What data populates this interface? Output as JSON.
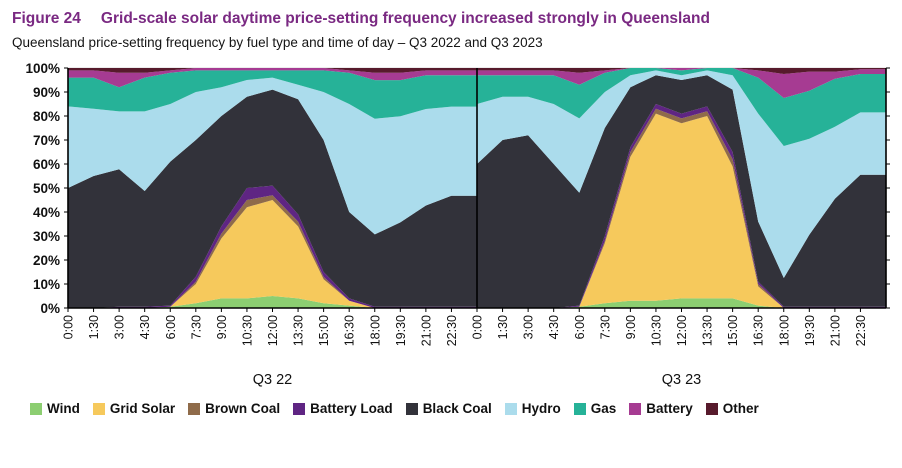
{
  "header": {
    "figure_label": "Figure 24",
    "title": "Grid-scale solar daytime price-setting frequency increased strongly in Queensland",
    "subtitle": "Queensland price-setting frequency by fuel type and time of day – Q3 2022 and Q3 2023"
  },
  "chart_data": {
    "type": "area",
    "stacked": true,
    "normalized_to_100_percent": true,
    "unit": "%",
    "ylim": [
      0,
      100
    ],
    "grid": "horizontal",
    "legend_position": "bottom",
    "y_ticks": [
      "100%",
      "90%",
      "80%",
      "70%",
      "60%",
      "50%",
      "40%",
      "30%",
      "20%",
      "10%",
      "0%"
    ],
    "x_tick_labels": [
      "0:00",
      "1:30",
      "3:00",
      "4:30",
      "6:00",
      "7:30",
      "9:00",
      "10:30",
      "12:00",
      "13:30",
      "15:00",
      "16:30",
      "18:00",
      "19:30",
      "21:00",
      "22:30"
    ],
    "series_order": [
      "Wind",
      "Grid Solar",
      "Brown Coal",
      "Battery Load",
      "Black Coal",
      "Hydro",
      "Gas",
      "Battery",
      "Other"
    ],
    "colors": {
      "Wind": "#8cce71",
      "Grid Solar": "#f6c95c",
      "Brown Coal": "#8f6b4a",
      "Battery Load": "#5f2583",
      "Black Coal": "#32323a",
      "Hydro": "#abdcec",
      "Gas": "#26b298",
      "Battery": "#a63b92",
      "Other": "#571a2c"
    },
    "panels": [
      {
        "label": "Q3 22",
        "series": {
          "Wind": [
            0,
            0,
            0,
            0,
            0.5,
            2,
            4,
            4,
            5,
            4,
            2,
            1,
            0,
            0,
            0,
            0
          ],
          "Grid Solar": [
            0,
            0,
            0,
            0,
            0,
            8,
            25,
            38,
            40,
            30,
            10,
            2,
            0,
            0,
            0,
            0
          ],
          "Brown Coal": [
            0,
            0,
            0,
            0,
            0,
            1,
            2,
            3,
            2,
            2,
            1,
            0,
            0,
            0,
            0,
            0
          ],
          "Battery Load": [
            0,
            0,
            0.5,
            0.5,
            0.5,
            2,
            3,
            5,
            4,
            3,
            2,
            1,
            0.5,
            0.5,
            0.5,
            0.5
          ],
          "Black Coal": [
            50,
            55,
            57,
            48,
            60,
            57,
            46,
            38,
            40,
            48,
            55,
            36,
            30,
            35,
            42,
            46
          ],
          "Hydro": [
            34,
            28,
            24,
            33,
            24,
            20,
            12,
            7,
            5,
            6,
            20,
            45,
            48,
            44,
            40,
            37
          ],
          "Gas": [
            12,
            13,
            10,
            14,
            13,
            9,
            7,
            4,
            3,
            6,
            9,
            13,
            16,
            15,
            14,
            13
          ],
          "Battery": [
            3,
            3,
            6,
            2,
            1,
            1,
            1,
            1,
            1,
            1,
            1,
            1,
            3,
            3,
            2,
            2
          ],
          "Other": [
            1,
            1,
            2,
            2,
            1,
            0,
            0,
            0,
            0,
            0,
            0,
            1,
            2,
            2,
            1,
            1
          ]
        }
      },
      {
        "label": "Q3 23",
        "series": {
          "Wind": [
            0,
            0,
            0,
            0,
            0.5,
            2,
            3,
            3,
            4,
            4,
            4,
            1,
            0,
            0,
            0,
            0
          ],
          "Grid Solar": [
            0,
            0,
            0,
            0,
            0,
            25,
            60,
            78,
            73,
            76,
            55,
            8,
            0,
            0,
            0,
            0
          ],
          "Brown Coal": [
            0,
            0,
            0,
            0,
            0,
            1,
            2,
            2,
            2,
            2,
            3,
            1,
            0,
            0,
            0,
            0
          ],
          "Battery Load": [
            0,
            0,
            0,
            0,
            0.5,
            2,
            2,
            2,
            2,
            2,
            3,
            1,
            0.5,
            0.5,
            0.5,
            0.5
          ],
          "Black Coal": [
            60,
            70,
            72,
            60,
            47,
            45,
            25,
            12,
            14,
            13,
            26,
            25,
            12,
            30,
            45,
            55
          ],
          "Hydro": [
            25,
            18,
            16,
            25,
            31,
            15,
            5,
            2,
            2,
            2,
            6,
            45,
            55,
            40,
            30,
            26
          ],
          "Gas": [
            12,
            9,
            9,
            12,
            14,
            8,
            3,
            1,
            2,
            1,
            3,
            15,
            20,
            20,
            20,
            16
          ],
          "Battery": [
            2,
            2,
            2,
            2,
            5,
            1,
            0,
            0,
            1,
            0,
            0,
            3,
            10,
            8,
            3,
            2
          ],
          "Other": [
            1,
            1,
            1,
            1,
            2,
            1,
            0,
            0,
            0,
            0,
            0,
            1,
            2.5,
            1.5,
            1.5,
            0.5
          ]
        }
      }
    ]
  }
}
